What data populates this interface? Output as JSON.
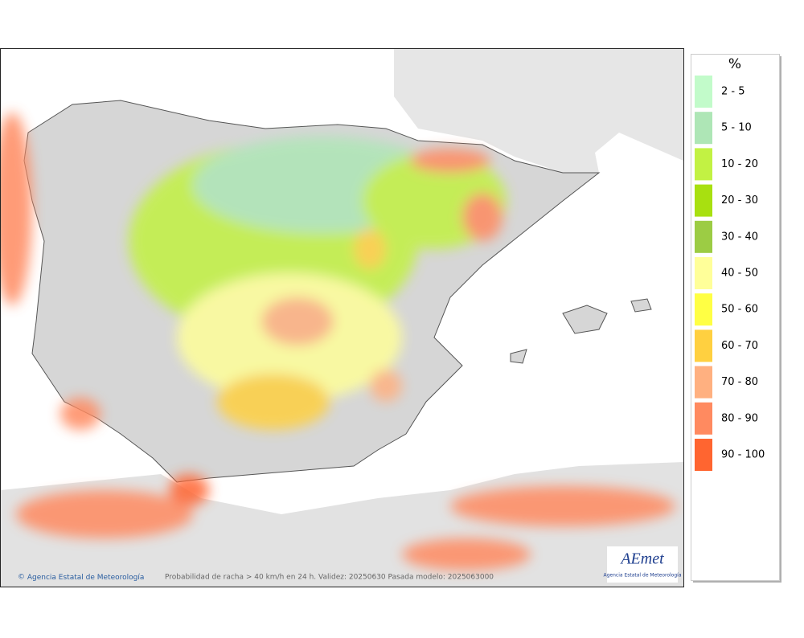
{
  "legend": {
    "title": "%",
    "items": [
      {
        "label": "2 - 5",
        "color": "#c2fbca"
      },
      {
        "label": "5 - 10",
        "color": "#aee6b6"
      },
      {
        "label": "10 - 20",
        "color": "#c2f243"
      },
      {
        "label": "20 - 30",
        "color": "#a8e010"
      },
      {
        "label": "30 - 40",
        "color": "#9ccc44"
      },
      {
        "label": "40 - 50",
        "color": "#ffff99"
      },
      {
        "label": "50 - 60",
        "color": "#ffff44"
      },
      {
        "label": "60 - 70",
        "color": "#ffd040"
      },
      {
        "label": "70 - 80",
        "color": "#ffb080"
      },
      {
        "label": "80 - 90",
        "color": "#ff8a60"
      },
      {
        "label": "90 - 100",
        "color": "#ff6530"
      }
    ]
  },
  "footer": {
    "credit": "Agencia Estatal de Meteorología",
    "caption": "Probabilidad de racha > 40 km/h en 24 h. Validez: 20250630 Pasada modelo: 2025063000"
  },
  "logo": {
    "name": "AEmet",
    "subtitle": "Agencia Estatal de Meteorología"
  }
}
